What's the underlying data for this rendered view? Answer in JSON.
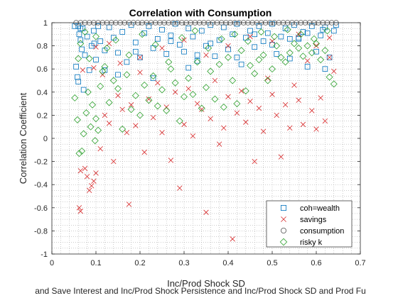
{
  "chart_data": {
    "type": "scatter",
    "title": "Correlation with Consumption",
    "xlabel": "Inc/Prod Shock SD",
    "ylabel": "Correlation Coefficient",
    "bottom_label": "and Save Interest and Inc/Prod Shock Persistence and Inc/Prod Shock SD and Prod Fu",
    "xlim": [
      0,
      0.7
    ],
    "ylim": [
      -1,
      1
    ],
    "xticks": [
      0,
      0.1,
      0.2,
      0.3,
      0.4,
      0.5,
      0.6,
      0.7
    ],
    "xtick_labels": [
      "0",
      "0.1",
      "0.2",
      "0.3",
      "0.4",
      "0.5",
      "0.6",
      "0.7"
    ],
    "yticks": [
      -1,
      -0.8,
      -0.6,
      -0.4,
      -0.2,
      0,
      0.2,
      0.4,
      0.6,
      0.8,
      1
    ],
    "ytick_labels": [
      "-1",
      "-0.8",
      "-0.6",
      "-0.4",
      "-0.2",
      "0",
      "0.2",
      "0.4",
      "0.6",
      "0.8",
      "1"
    ],
    "grid": "minor-dotted",
    "legend_position": "bottom-right",
    "series": [
      {
        "name": "coh=wealth",
        "marker": "square",
        "color": "#0072BD",
        "x": [
          0.052,
          0.055,
          0.058,
          0.06,
          0.062,
          0.065,
          0.068,
          0.07,
          0.075,
          0.08,
          0.085,
          0.09,
          0.095,
          0.1,
          0.105,
          0.11,
          0.12,
          0.13,
          0.14,
          0.15,
          0.16,
          0.17,
          0.18,
          0.19,
          0.2,
          0.21,
          0.22,
          0.23,
          0.24,
          0.25,
          0.26,
          0.27,
          0.28,
          0.29,
          0.3,
          0.31,
          0.32,
          0.33,
          0.34,
          0.35,
          0.36,
          0.37,
          0.38,
          0.39,
          0.4,
          0.41,
          0.42,
          0.43,
          0.44,
          0.45,
          0.46,
          0.47,
          0.48,
          0.49,
          0.5,
          0.51,
          0.52,
          0.53,
          0.54,
          0.55,
          0.56,
          0.57,
          0.58,
          0.59,
          0.6,
          0.61,
          0.62,
          0.63,
          0.64,
          0.645,
          0.065,
          0.072,
          0.12,
          0.15,
          0.23,
          0.31,
          0.36,
          0.46,
          0.56,
          0.62,
          0.096,
          0.19,
          0.27,
          0.42,
          0.5,
          0.54,
          0.615,
          0.33,
          0.58,
          0.06
        ],
        "y": [
          0.97,
          0.62,
          0.53,
          0.49,
          0.9,
          0.85,
          0.77,
          0.95,
          0.72,
          0.88,
          0.59,
          0.8,
          0.93,
          0.68,
          0.97,
          0.84,
          0.76,
          0.96,
          0.87,
          0.74,
          0.92,
          0.66,
          0.98,
          0.83,
          0.7,
          0.91,
          0.97,
          0.78,
          0.86,
          0.94,
          0.73,
          0.89,
          0.99,
          0.81,
          0.75,
          0.95,
          0.88,
          0.67,
          0.93,
          0.8,
          0.98,
          0.71,
          0.85,
          0.96,
          0.77,
          0.9,
          0.99,
          0.64,
          0.87,
          0.93,
          0.79,
          0.97,
          0.84,
          0.91,
          0.99,
          0.73,
          0.88,
          0.95,
          0.69,
          0.98,
          0.86,
          0.92,
          0.62,
          0.97,
          0.75,
          0.89,
          0.96,
          0.7,
          0.93,
          0.98,
          0.95,
          0.42,
          0.59,
          0.55,
          0.52,
          0.61,
          0.82,
          0.9,
          0.87,
          0.6,
          0.82,
          0.75,
          0.84,
          0.7,
          0.81,
          0.86,
          0.94,
          0.72,
          0.91,
          0.97
        ]
      },
      {
        "name": "savings",
        "marker": "x",
        "color": "#D62728",
        "x": [
          0.062,
          0.065,
          0.075,
          0.08,
          0.085,
          0.09,
          0.095,
          0.1,
          0.11,
          0.12,
          0.13,
          0.14,
          0.15,
          0.16,
          0.17,
          0.175,
          0.18,
          0.19,
          0.2,
          0.21,
          0.22,
          0.23,
          0.24,
          0.25,
          0.26,
          0.27,
          0.28,
          0.29,
          0.3,
          0.31,
          0.32,
          0.33,
          0.34,
          0.35,
          0.36,
          0.37,
          0.38,
          0.39,
          0.4,
          0.41,
          0.42,
          0.43,
          0.44,
          0.45,
          0.46,
          0.47,
          0.48,
          0.49,
          0.5,
          0.51,
          0.52,
          0.53,
          0.54,
          0.55,
          0.56,
          0.57,
          0.58,
          0.59,
          0.6,
          0.61,
          0.62,
          0.63,
          0.64,
          0.065,
          0.095,
          0.1,
          0.13,
          0.2,
          0.25,
          0.3,
          0.35,
          0.4,
          0.45,
          0.5,
          0.56,
          0.6,
          0.63,
          0.07,
          0.115,
          0.155
        ],
        "y": [
          -0.6,
          -0.28,
          -0.26,
          -0.33,
          -0.45,
          -0.41,
          -0.37,
          -0.3,
          -0.09,
          0.2,
          0.13,
          -0.2,
          0.37,
          0.25,
          0.05,
          -0.57,
          0.29,
          0.11,
          0.57,
          -0.12,
          0.34,
          0.18,
          0.48,
          0.05,
          0.27,
          -0.19,
          0.4,
          -0.43,
          0.12,
          0.43,
          0.02,
          0.3,
          0.25,
          -0.64,
          0.17,
          0.5,
          -0.05,
          0.09,
          0.36,
          -0.87,
          0.22,
          0.41,
          0.14,
          0.32,
          -0.2,
          0.26,
          0.06,
          0.52,
          0.38,
          0.2,
          -0.16,
          0.29,
          0.09,
          0.46,
          0.33,
          0.12,
          0.67,
          0.24,
          0.08,
          0.35,
          0.15,
          0.7,
          0.58,
          -0.63,
          0.61,
          0.79,
          0.82,
          0.7,
          0.78,
          0.85,
          0.72,
          0.8,
          0.88,
          0.84,
          0.9,
          0.8,
          0.87,
          0.59,
          0.55,
          0.65
        ]
      },
      {
        "name": "consumption",
        "marker": "circle",
        "color": "#555555",
        "x": [
          0.055,
          0.065,
          0.075,
          0.085,
          0.095,
          0.105,
          0.115,
          0.125,
          0.135,
          0.145,
          0.155,
          0.165,
          0.175,
          0.185,
          0.195,
          0.205,
          0.215,
          0.225,
          0.235,
          0.245,
          0.255,
          0.265,
          0.275,
          0.285,
          0.295,
          0.305,
          0.315,
          0.325,
          0.335,
          0.345,
          0.355,
          0.365,
          0.375,
          0.385,
          0.395,
          0.405,
          0.415,
          0.425,
          0.435,
          0.445,
          0.455,
          0.465,
          0.475,
          0.485,
          0.495,
          0.505,
          0.515,
          0.525,
          0.535,
          0.545,
          0.555,
          0.565,
          0.575,
          0.585,
          0.595,
          0.605,
          0.615,
          0.625,
          0.635,
          0.645
        ],
        "y": [
          1,
          1,
          1,
          1,
          1,
          1,
          1,
          1,
          1,
          1,
          1,
          1,
          1,
          1,
          1,
          1,
          1,
          1,
          1,
          1,
          1,
          1,
          1,
          1,
          1,
          1,
          1,
          1,
          1,
          1,
          1,
          1,
          1,
          1,
          1,
          1,
          1,
          1,
          1,
          1,
          1,
          1,
          1,
          1,
          1,
          1,
          1,
          1,
          1,
          1,
          1,
          1,
          1,
          1,
          1,
          1,
          1,
          1,
          1,
          1
        ]
      },
      {
        "name": "risky k",
        "marker": "diamond",
        "color": "#2CA02C",
        "x": [
          0.052,
          0.058,
          0.062,
          0.068,
          0.072,
          0.078,
          0.082,
          0.088,
          0.092,
          0.098,
          0.1,
          0.105,
          0.11,
          0.115,
          0.12,
          0.13,
          0.14,
          0.15,
          0.16,
          0.17,
          0.18,
          0.19,
          0.2,
          0.21,
          0.22,
          0.23,
          0.24,
          0.25,
          0.26,
          0.27,
          0.28,
          0.29,
          0.3,
          0.31,
          0.32,
          0.33,
          0.34,
          0.35,
          0.36,
          0.37,
          0.38,
          0.39,
          0.4,
          0.41,
          0.42,
          0.43,
          0.44,
          0.45,
          0.46,
          0.47,
          0.48,
          0.49,
          0.5,
          0.51,
          0.52,
          0.53,
          0.54,
          0.55,
          0.56,
          0.57,
          0.58,
          0.59,
          0.6,
          0.61,
          0.62,
          0.63,
          0.64,
          0.065,
          0.085,
          0.1,
          0.125,
          0.145,
          0.175,
          0.205,
          0.235,
          0.265,
          0.295,
          0.325,
          0.355,
          0.385,
          0.415,
          0.445,
          0.475,
          0.505,
          0.535,
          0.565,
          0.595,
          0.625,
          0.06,
          0.075
        ],
        "y": [
          0.35,
          0.16,
          -0.13,
          -0.11,
          0.04,
          0.22,
          0.4,
          0.1,
          0.29,
          -0.02,
          0.17,
          0.07,
          0.45,
          0.58,
          0.62,
          0.31,
          0.5,
          0.43,
          0.08,
          0.55,
          0.25,
          0.37,
          0.2,
          0.46,
          0.33,
          0.54,
          0.28,
          0.42,
          0.24,
          0.6,
          0.48,
          0.15,
          0.36,
          0.52,
          0.38,
          0.66,
          0.26,
          0.44,
          0.58,
          0.34,
          0.64,
          0.27,
          0.7,
          0.5,
          0.3,
          0.76,
          0.41,
          0.63,
          0.56,
          0.68,
          0.72,
          0.5,
          0.6,
          0.8,
          0.7,
          0.66,
          0.74,
          0.82,
          0.78,
          0.71,
          0.8,
          0.74,
          0.82,
          0.68,
          0.76,
          0.53,
          0.47,
          0.82,
          0.69,
          0.88,
          0.78,
          0.85,
          0.72,
          0.9,
          0.81,
          0.66,
          0.87,
          0.93,
          0.78,
          0.86,
          0.9,
          0.84,
          0.92,
          0.88,
          0.94,
          0.9,
          0.86,
          0.93,
          0.69,
          0.92
        ]
      }
    ]
  }
}
